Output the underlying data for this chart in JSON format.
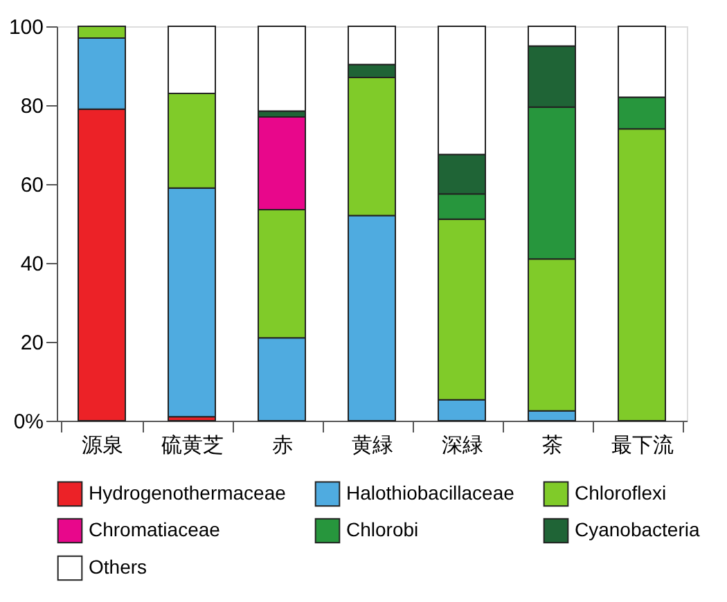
{
  "chart_data": {
    "type": "bar",
    "stacked": true,
    "categories": [
      "源泉",
      "硫黄芝",
      "赤",
      "黄緑",
      "深緑",
      "茶",
      "最下流"
    ],
    "series": [
      {
        "name": "Hydrogenothermaceae",
        "color": "#ec2227",
        "values": [
          79,
          1,
          null,
          null,
          null,
          null,
          null
        ]
      },
      {
        "name": "Halothiobacillaceae",
        "color": "#4fabe0",
        "values": [
          18,
          58,
          21,
          52,
          5.3,
          2.5,
          null
        ]
      },
      {
        "name": "Chloroflexi",
        "color": "#80cb29",
        "values": [
          3,
          24,
          32.5,
          35,
          45.8,
          38.5,
          74
        ]
      },
      {
        "name": "Chromatiaceae",
        "color": "#e8078b",
        "values": [
          null,
          null,
          23.5,
          null,
          null,
          null,
          null
        ]
      },
      {
        "name": "Chlorobi",
        "color": "#27963d",
        "values": [
          null,
          null,
          null,
          null,
          6.4,
          38.5,
          8
        ]
      },
      {
        "name": "Cyanobacteria",
        "color": "#1f6436",
        "values": [
          null,
          null,
          1.5,
          3.3,
          10,
          15.5,
          null
        ]
      },
      {
        "name": "Others",
        "color": "#ffffff",
        "values": [
          null,
          17,
          21.5,
          9.7,
          32.5,
          5,
          18
        ]
      }
    ],
    "ylim": [
      0,
      100
    ],
    "yticks": [
      {
        "value": 0,
        "label": "0%"
      },
      20,
      40,
      60,
      80,
      100
    ],
    "grid": false,
    "legend": "bottom"
  }
}
